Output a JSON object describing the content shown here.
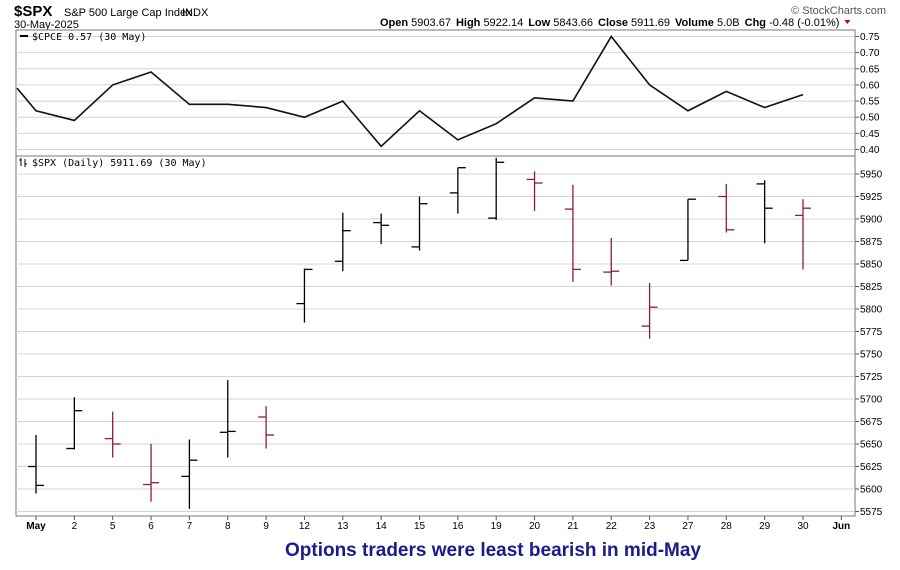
{
  "header": {
    "symbol": "$SPX",
    "name": "S&P 500 Large Cap Index",
    "exchange": "INDX",
    "date": "30-May-2025",
    "watermark": "© StockCharts.com",
    "ohlc": [
      {
        "label": "Open",
        "value": "5903.67"
      },
      {
        "label": "High",
        "value": "5922.14"
      },
      {
        "label": "Low",
        "value": "5843.66"
      },
      {
        "label": "Close",
        "value": "5911.69"
      },
      {
        "label": "Volume",
        "value": "5.0B"
      },
      {
        "label": "Chg",
        "value": "-0.48 (-0.01%)"
      }
    ]
  },
  "footer_caption": "Options traders were least bearish in mid-May",
  "colors": {
    "up": "#000000",
    "down": "#8b1a4a",
    "grid": "#d4d4d4",
    "caption": "#1a1a8c",
    "change_marker": "#c0003c"
  },
  "chart_data": [
    {
      "type": "line",
      "legend": "$CPCE 0.57 (30 May)",
      "x": [
        "May 1",
        "May 2",
        "May 5",
        "May 6",
        "May 7",
        "May 8",
        "May 9",
        "May 12",
        "May 13",
        "May 14",
        "May 15",
        "May 16",
        "May 19",
        "May 20",
        "May 21",
        "May 22",
        "May 23",
        "May 27",
        "May 28",
        "May 29",
        "May 30"
      ],
      "values": [
        0.52,
        0.49,
        0.6,
        0.64,
        0.54,
        0.54,
        0.53,
        0.5,
        0.55,
        0.41,
        0.52,
        0.43,
        0.48,
        0.56,
        0.55,
        0.75,
        0.6,
        0.52,
        0.58,
        0.53,
        0.57
      ],
      "prior_value": 0.59,
      "ylim": [
        0.38,
        0.77
      ],
      "yticks": [
        "0.75",
        "0.70",
        "0.65",
        "0.60",
        "0.55",
        "0.50",
        "0.45",
        "0.40"
      ]
    },
    {
      "type": "ohlc",
      "legend": "$SPX (Daily) 5911.69 (30 May)",
      "ylim": [
        5570,
        5970
      ],
      "yticks": [
        "5950",
        "5925",
        "5900",
        "5875",
        "5850",
        "5825",
        "5800",
        "5775",
        "5750",
        "5725",
        "5700",
        "5675",
        "5650",
        "5625",
        "5600",
        "5575"
      ],
      "x_labels": [
        "May",
        "2",
        "5",
        "6",
        "7",
        "8",
        "9",
        "12",
        "13",
        "14",
        "15",
        "16",
        "19",
        "20",
        "21",
        "22",
        "23",
        "27",
        "28",
        "29",
        "30",
        "Jun"
      ],
      "bars": [
        {
          "date": "May 1",
          "open": 5625,
          "high": 5660,
          "low": 5595,
          "close": 5604,
          "dir": "up"
        },
        {
          "date": "May 2",
          "open": 5645,
          "high": 5702,
          "low": 5644,
          "close": 5687,
          "dir": "up"
        },
        {
          "date": "May 5",
          "open": 5656,
          "high": 5686,
          "low": 5635,
          "close": 5650,
          "dir": "down"
        },
        {
          "date": "May 6",
          "open": 5605,
          "high": 5650,
          "low": 5586,
          "close": 5607,
          "dir": "down"
        },
        {
          "date": "May 7",
          "open": 5614,
          "high": 5655,
          "low": 5578,
          "close": 5632,
          "dir": "up"
        },
        {
          "date": "May 8",
          "open": 5663,
          "high": 5721,
          "low": 5635,
          "close": 5664,
          "dir": "up"
        },
        {
          "date": "May 9",
          "open": 5680,
          "high": 5692,
          "low": 5645,
          "close": 5660,
          "dir": "down"
        },
        {
          "date": "May 12",
          "open": 5806,
          "high": 5845,
          "low": 5785,
          "close": 5844,
          "dir": "up"
        },
        {
          "date": "May 13",
          "open": 5853,
          "high": 5907,
          "low": 5842,
          "close": 5887,
          "dir": "up"
        },
        {
          "date": "May 14",
          "open": 5896,
          "high": 5906,
          "low": 5872,
          "close": 5893,
          "dir": "up"
        },
        {
          "date": "May 15",
          "open": 5869,
          "high": 5925,
          "low": 5865,
          "close": 5917,
          "dir": "up"
        },
        {
          "date": "May 16",
          "open": 5929,
          "high": 5957,
          "low": 5906,
          "close": 5957,
          "dir": "up"
        },
        {
          "date": "May 19",
          "open": 5901,
          "high": 5968,
          "low": 5899,
          "close": 5963,
          "dir": "up"
        },
        {
          "date": "May 20",
          "open": 5944,
          "high": 5953,
          "low": 5909,
          "close": 5940,
          "dir": "down"
        },
        {
          "date": "May 21",
          "open": 5911,
          "high": 5938,
          "low": 5830,
          "close": 5844,
          "dir": "down"
        },
        {
          "date": "May 22",
          "open": 5841,
          "high": 5879,
          "low": 5826,
          "close": 5842,
          "dir": "down"
        },
        {
          "date": "May 23",
          "open": 5781,
          "high": 5829,
          "low": 5767,
          "close": 5802,
          "dir": "down"
        },
        {
          "date": "May 27",
          "open": 5854,
          "high": 5922,
          "low": 5854,
          "close": 5922,
          "dir": "up"
        },
        {
          "date": "May 28",
          "open": 5925,
          "high": 5939,
          "low": 5885,
          "close": 5888,
          "dir": "down"
        },
        {
          "date": "May 29",
          "open": 5939,
          "high": 5943,
          "low": 5873,
          "close": 5912,
          "dir": "up"
        },
        {
          "date": "May 30",
          "open": 5904,
          "high": 5922,
          "low": 5844,
          "close": 5912,
          "dir": "down"
        }
      ]
    }
  ]
}
